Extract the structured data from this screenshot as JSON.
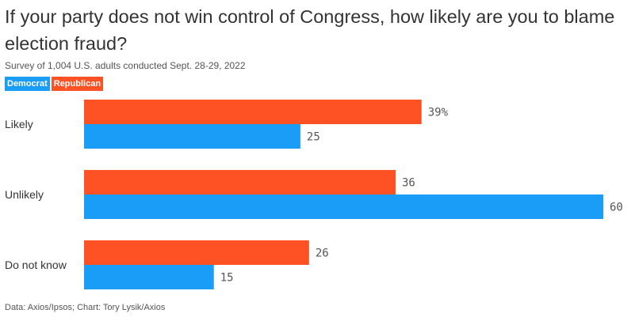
{
  "title": "If your party does not win control of Congress, how likely are you to blame election fraud?",
  "subtitle": "Survey of 1,004 U.S. adults conducted Sept. 28-29, 2022",
  "footer": "Data: Axios/Ipsos; Chart: Tory Lysik/Axios",
  "legend": [
    {
      "label": "Democrat",
      "color": "#1a9df6"
    },
    {
      "label": "Republican",
      "color": "#ff5224"
    }
  ],
  "chart_data": {
    "type": "bar",
    "orientation": "horizontal",
    "categories": [
      "Likely",
      "Unlikely",
      "Do not know"
    ],
    "series": [
      {
        "name": "Republican",
        "color": "#ff5224",
        "values": [
          39,
          36,
          26
        ],
        "labels": [
          "39%",
          "36",
          "26"
        ]
      },
      {
        "name": "Democrat",
        "color": "#1a9df6",
        "values": [
          25,
          60,
          15
        ],
        "labels": [
          "25",
          "60",
          "15"
        ]
      }
    ],
    "xlim": [
      0,
      60
    ],
    "grid": false
  }
}
